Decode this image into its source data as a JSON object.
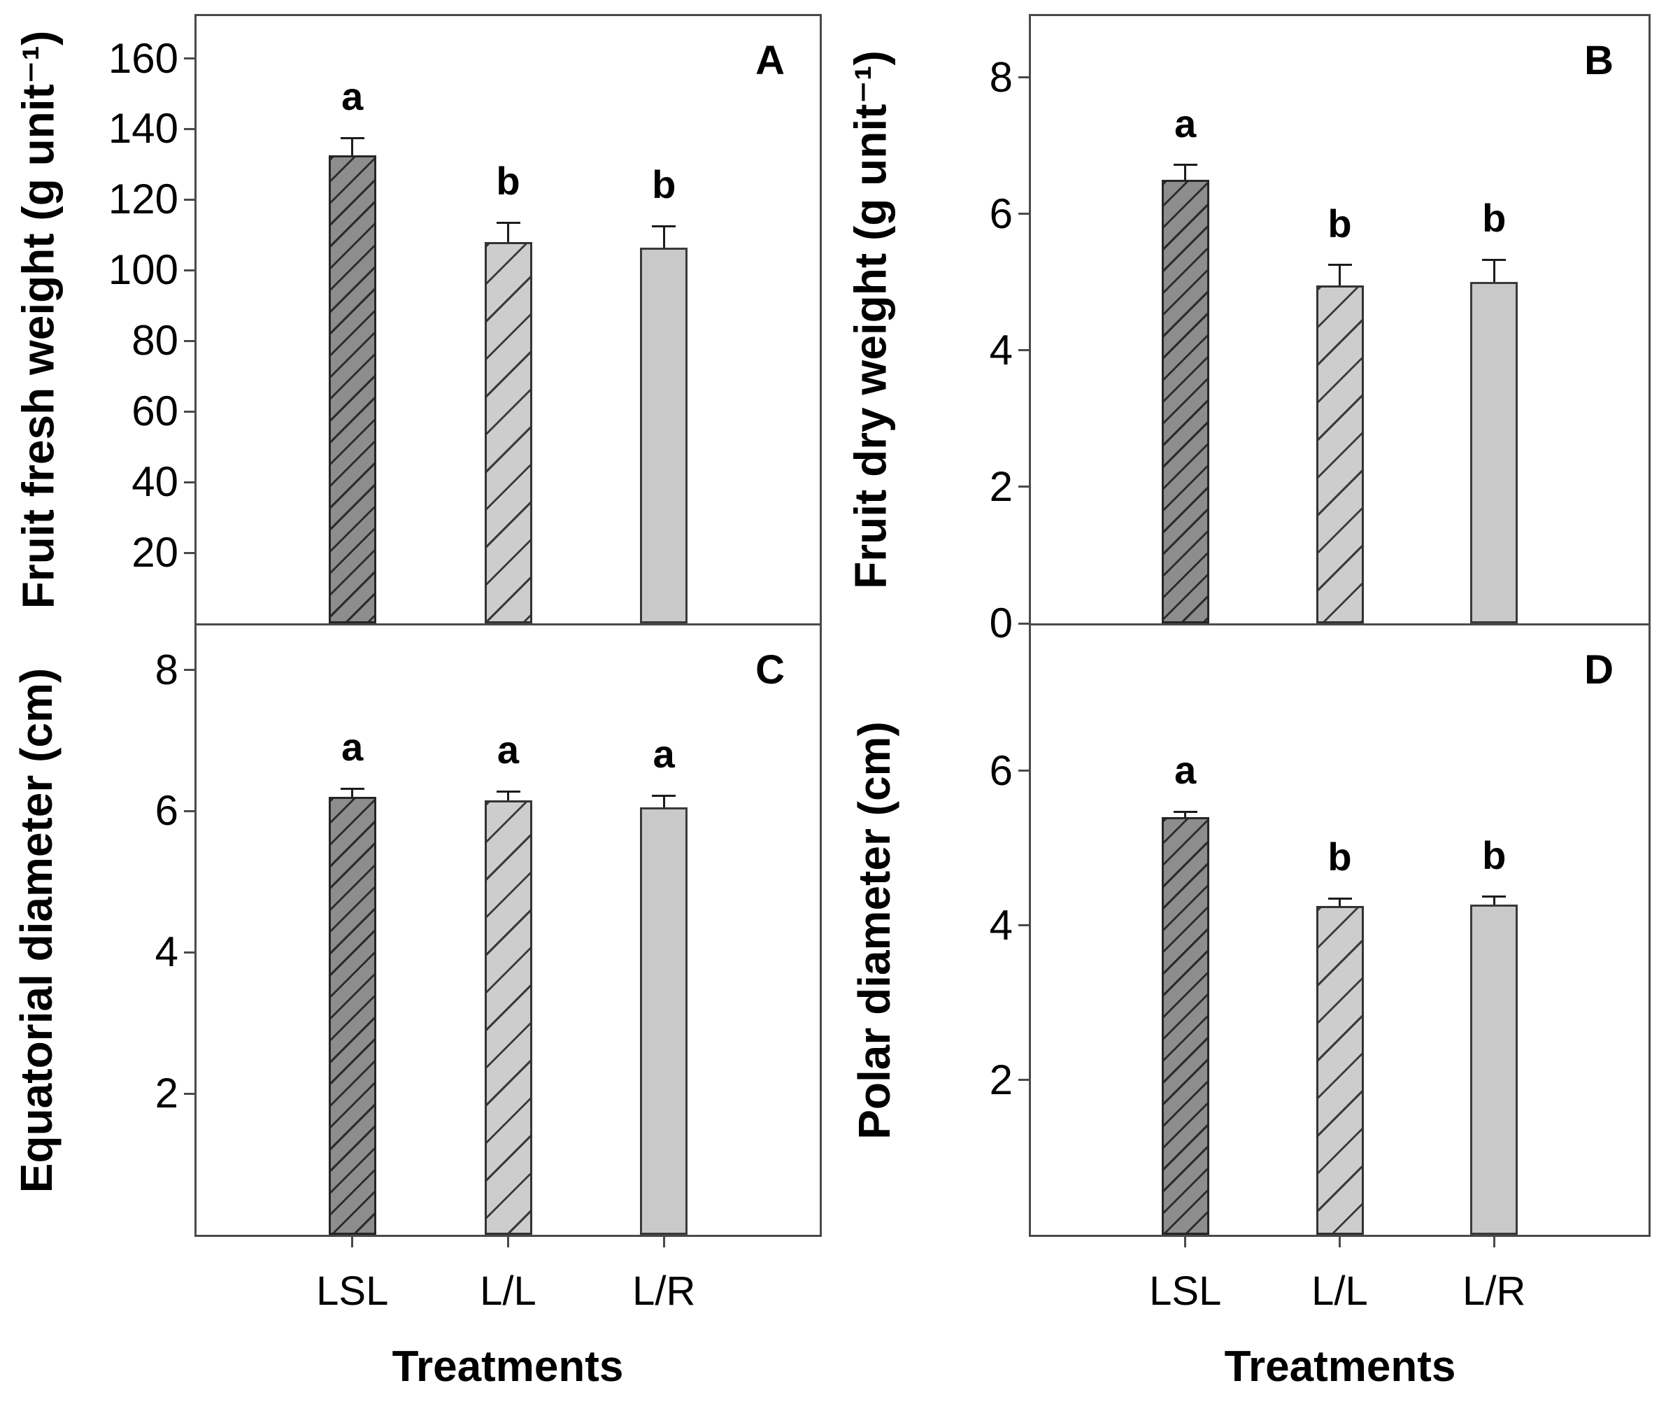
{
  "figure": {
    "x_axis_title": "Treatments",
    "categories": [
      "LSL",
      "L/L",
      "L/R"
    ],
    "background": "#ffffff",
    "frame_color": "#4a4a4a",
    "text_color": "#000000"
  },
  "bar_styles": [
    {
      "name": "dark-gray-hatched",
      "fill": "#8d8d8d",
      "border": "#262626",
      "hatch": "diagonal-up",
      "hatch_color": "#2b2b2b",
      "hatch_spacing": 22,
      "hatch_thickness": 3
    },
    {
      "name": "light-gray-hatched",
      "fill": "#cdcdcd",
      "border": "#333333",
      "hatch": "diagonal-up",
      "hatch_color": "#3a3a3a",
      "hatch_spacing": 38,
      "hatch_thickness": 3
    },
    {
      "name": "light-gray-plain",
      "fill": "#c9c9c9",
      "border": "#3a3a3a",
      "hatch": "none",
      "hatch_color": "",
      "hatch_spacing": 0,
      "hatch_thickness": 0
    }
  ],
  "chart_data": [
    {
      "type": "bar",
      "panel_label": "A",
      "ylabel": "Fruit fresh weight (g unit⁻¹)",
      "xlabel": "Treatments",
      "categories": [
        "LSL",
        "L/L",
        "L/R"
      ],
      "values": [
        132.5,
        108,
        106.5
      ],
      "errors": [
        5,
        5.5,
        6
      ],
      "sig_letters": [
        "a",
        "b",
        "b"
      ],
      "ylim": [
        0,
        172
      ],
      "yticks": [
        20,
        40,
        60,
        80,
        100,
        120,
        140,
        160
      ],
      "grid": false,
      "legend": "none"
    },
    {
      "type": "bar",
      "panel_label": "B",
      "ylabel": "Fruit dry weight (g unit⁻¹)",
      "xlabel": "Treatments",
      "categories": [
        "LSL",
        "L/L",
        "L/R"
      ],
      "values": [
        6.5,
        4.95,
        5.0
      ],
      "errors": [
        0.22,
        0.3,
        0.33
      ],
      "sig_letters": [
        "a",
        "b",
        "b"
      ],
      "ylim": [
        0,
        8.9
      ],
      "yticks": [
        0,
        2,
        4,
        6,
        8
      ],
      "grid": false,
      "legend": "none"
    },
    {
      "type": "bar",
      "panel_label": "C",
      "ylabel": "Equatorial diameter (cm)",
      "xlabel": "Treatments",
      "categories": [
        "LSL",
        "L/L",
        "L/R"
      ],
      "values": [
        6.2,
        6.15,
        6.05
      ],
      "errors": [
        0.12,
        0.13,
        0.17
      ],
      "sig_letters": [
        "a",
        "a",
        "a"
      ],
      "ylim": [
        0,
        8.6
      ],
      "yticks": [
        2,
        4,
        6,
        8
      ],
      "grid": false,
      "legend": "none"
    },
    {
      "type": "bar",
      "panel_label": "D",
      "ylabel": "Polar diameter (cm)",
      "xlabel": "Treatments",
      "categories": [
        "LSL",
        "L/L",
        "L/R"
      ],
      "values": [
        5.4,
        4.25,
        4.27
      ],
      "errors": [
        0.07,
        0.1,
        0.1
      ],
      "sig_letters": [
        "a",
        "b",
        "b"
      ],
      "ylim": [
        0,
        7.85
      ],
      "yticks": [
        2,
        4,
        6
      ],
      "grid": false,
      "legend": "none"
    }
  ]
}
